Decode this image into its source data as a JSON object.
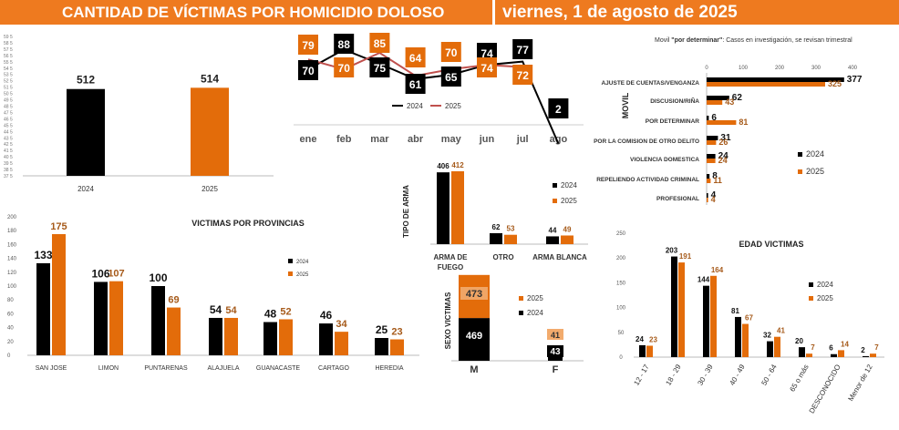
{
  "header": {
    "left_title": "CANTIDAD DE VÍCTIMAS POR HOMICIDIO DOLOSO",
    "right_date": "viernes, 1 de agosto de 2025"
  },
  "colors": {
    "y2024": "#000000",
    "y2025": "#e36c0a",
    "header": "#ee7a1f",
    "line2025": "#c0504d"
  },
  "chart_data": [
    {
      "id": "totals",
      "type": "bar",
      "categories": [
        "2024",
        "2025"
      ],
      "values": [
        512,
        514
      ],
      "ylim": [
        375,
        595
      ],
      "yticks": [
        "37 5",
        "38 5",
        "39 5",
        "40 5",
        "41 5",
        "42 5",
        "43 5",
        "44 5",
        "45 5",
        "46 5",
        "47 5",
        "48 5",
        "49 5",
        "50 5",
        "51 5",
        "52 5",
        "53 5",
        "54 5",
        "55 5",
        "56 5",
        "57 5",
        "58 5",
        "59 5"
      ]
    },
    {
      "id": "monthly",
      "type": "line",
      "categories": [
        "ene",
        "feb",
        "mar",
        "abr",
        "may",
        "jun",
        "jul",
        "ago"
      ],
      "series": [
        {
          "name": "2024",
          "values": [
            70,
            88,
            75,
            61,
            65,
            74,
            77,
            2
          ]
        },
        {
          "name": "2025",
          "values": [
            79,
            70,
            85,
            64,
            70,
            74,
            72,
            null
          ]
        }
      ]
    },
    {
      "id": "provincias",
      "type": "bar",
      "title": "VICTIMAS POR PROVINCIAS",
      "categories": [
        "SAN JOSE",
        "LIMON",
        "PUNTARENAS",
        "ALAJUELA",
        "GUANACASTE",
        "CARTAGO",
        "HEREDIA"
      ],
      "series": [
        {
          "name": "2024",
          "values": [
            133,
            106,
            100,
            54,
            48,
            46,
            25
          ]
        },
        {
          "name": "2025",
          "values": [
            175,
            107,
            69,
            54,
            52,
            34,
            23
          ]
        }
      ],
      "ylim": [
        0,
        200
      ],
      "yticks": [
        "0",
        "20",
        "40",
        "60",
        "80",
        "100",
        "120",
        "140",
        "160",
        "180",
        "200"
      ]
    },
    {
      "id": "arma",
      "type": "bar",
      "ylabel": "TIPO DE ARMA",
      "categories": [
        "ARMA DE FUEGO",
        "OTRO",
        "ARMA BLANCA"
      ],
      "series": [
        {
          "name": "2024",
          "values": [
            406,
            62,
            44
          ]
        },
        {
          "name": "2025",
          "values": [
            412,
            53,
            49
          ]
        }
      ]
    },
    {
      "id": "sexo",
      "type": "bar",
      "ylabel": "SEXO VICTIMAS",
      "categories": [
        "M",
        "F"
      ],
      "series": [
        {
          "name": "2024",
          "values": [
            469,
            43
          ]
        },
        {
          "name": "2025",
          "values": [
            473,
            41
          ]
        }
      ]
    },
    {
      "id": "movil",
      "type": "bar",
      "title": "Movil \"por determinar\": Casos en investigación, se revisan trimestral",
      "title_prefix": "Movil ",
      "title_bold": "\"por determinar\"",
      "title_suffix": ": Casos en investigación, se revisan trimestral",
      "ylabel": "MOVIL",
      "orientation": "horizontal",
      "categories": [
        "AJUSTE DE CUENTAS/VENGANZA",
        "DISCUSION/RIÑA",
        "POR DETERMINAR",
        "POR LA COMISION DE OTRO DELITO",
        "VIOLENCIA DOMESTICA",
        "REPELIENDO ACTIVIDAD CRIMINAL",
        "PROFESIONAL"
      ],
      "series": [
        {
          "name": "2024",
          "values": [
            377,
            62,
            6,
            31,
            24,
            8,
            4
          ]
        },
        {
          "name": "2025",
          "values": [
            325,
            43,
            81,
            26,
            24,
            11,
            4
          ]
        }
      ],
      "xlim": [
        0,
        400
      ],
      "xticks": [
        "0",
        "100",
        "200",
        "300",
        "400"
      ]
    },
    {
      "id": "edad",
      "type": "bar",
      "title": "EDAD VICTIMAS",
      "categories": [
        "12 - 17",
        "18 - 29",
        "30 - 39",
        "40 - 49",
        "50 - 64",
        "65 o más",
        "DESCONOCIDO",
        "Menor de 12"
      ],
      "series": [
        {
          "name": "2024",
          "values": [
            24,
            203,
            144,
            81,
            32,
            20,
            6,
            2
          ]
        },
        {
          "name": "2025",
          "values": [
            23,
            191,
            164,
            67,
            41,
            7,
            14,
            7
          ]
        }
      ],
      "ylim": [
        0,
        250
      ],
      "yticks": [
        "0",
        "50",
        "100",
        "150",
        "200",
        "250"
      ]
    }
  ]
}
